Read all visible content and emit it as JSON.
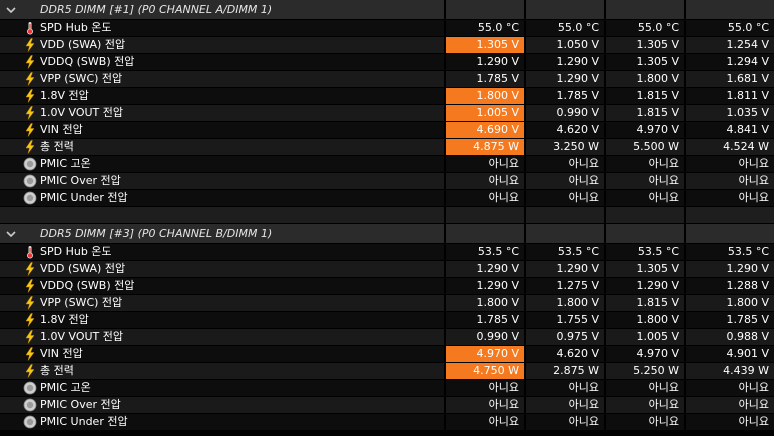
{
  "sections": [
    {
      "title": "DDR5 DIMM [#1] (P0 CHANNEL A/DIMM 1)",
      "rows": [
        {
          "icon": "thermometer-icon",
          "label": "SPD Hub 온도",
          "values": [
            "55.0 °C",
            "55.0 °C",
            "55.0 °C",
            "55.0 °C"
          ],
          "highlight": [
            false,
            false,
            false,
            false
          ]
        },
        {
          "icon": "lightning-icon",
          "label": "VDD (SWA) 전압",
          "values": [
            "1.305 V",
            "1.050 V",
            "1.305 V",
            "1.254 V"
          ],
          "highlight": [
            true,
            false,
            false,
            false
          ]
        },
        {
          "icon": "lightning-icon",
          "label": "VDDQ (SWB) 전압",
          "values": [
            "1.290 V",
            "1.290 V",
            "1.305 V",
            "1.294 V"
          ],
          "highlight": [
            false,
            false,
            false,
            false
          ]
        },
        {
          "icon": "lightning-icon",
          "label": "VPP (SWC) 전압",
          "values": [
            "1.785 V",
            "1.290 V",
            "1.800 V",
            "1.681 V"
          ],
          "highlight": [
            false,
            false,
            false,
            false
          ]
        },
        {
          "icon": "lightning-icon",
          "label": "1.8V 전압",
          "values": [
            "1.800 V",
            "1.785 V",
            "1.815 V",
            "1.811 V"
          ],
          "highlight": [
            true,
            false,
            false,
            false
          ]
        },
        {
          "icon": "lightning-icon",
          "label": "1.0V VOUT 전압",
          "values": [
            "1.005 V",
            "0.990 V",
            "1.815 V",
            "1.035 V"
          ],
          "highlight": [
            true,
            false,
            false,
            false
          ]
        },
        {
          "icon": "lightning-icon",
          "label": "VIN 전압",
          "values": [
            "4.690 V",
            "4.620 V",
            "4.970 V",
            "4.841 V"
          ],
          "highlight": [
            true,
            false,
            false,
            false
          ]
        },
        {
          "icon": "lightning-icon",
          "label": "총 전력",
          "values": [
            "4.875 W",
            "3.250 W",
            "5.500 W",
            "4.524 W"
          ],
          "highlight": [
            true,
            false,
            false,
            false
          ]
        },
        {
          "icon": "status-circle-icon",
          "label": "PMIC 고온",
          "values": [
            "아니요",
            "아니요",
            "아니요",
            "아니요"
          ],
          "highlight": [
            false,
            false,
            false,
            false
          ]
        },
        {
          "icon": "status-circle-icon",
          "label": "PMIC Over 전압",
          "values": [
            "아니요",
            "아니요",
            "아니요",
            "아니요"
          ],
          "highlight": [
            false,
            false,
            false,
            false
          ]
        },
        {
          "icon": "status-circle-icon",
          "label": "PMIC Under 전압",
          "values": [
            "아니요",
            "아니요",
            "아니요",
            "아니요"
          ],
          "highlight": [
            false,
            false,
            false,
            false
          ]
        }
      ]
    },
    {
      "title": "DDR5 DIMM [#3] (P0 CHANNEL B/DIMM 1)",
      "rows": [
        {
          "icon": "thermometer-icon",
          "label": "SPD Hub 온도",
          "values": [
            "53.5 °C",
            "53.5 °C",
            "53.5 °C",
            "53.5 °C"
          ],
          "highlight": [
            false,
            false,
            false,
            false
          ]
        },
        {
          "icon": "lightning-icon",
          "label": "VDD (SWA) 전압",
          "values": [
            "1.290 V",
            "1.290 V",
            "1.305 V",
            "1.290 V"
          ],
          "highlight": [
            false,
            false,
            false,
            false
          ]
        },
        {
          "icon": "lightning-icon",
          "label": "VDDQ (SWB) 전압",
          "values": [
            "1.290 V",
            "1.275 V",
            "1.290 V",
            "1.288 V"
          ],
          "highlight": [
            false,
            false,
            false,
            false
          ]
        },
        {
          "icon": "lightning-icon",
          "label": "VPP (SWC) 전압",
          "values": [
            "1.800 V",
            "1.800 V",
            "1.815 V",
            "1.800 V"
          ],
          "highlight": [
            false,
            false,
            false,
            false
          ]
        },
        {
          "icon": "lightning-icon",
          "label": "1.8V 전압",
          "values": [
            "1.785 V",
            "1.755 V",
            "1.800 V",
            "1.785 V"
          ],
          "highlight": [
            false,
            false,
            false,
            false
          ]
        },
        {
          "icon": "lightning-icon",
          "label": "1.0V VOUT 전압",
          "values": [
            "0.990 V",
            "0.975 V",
            "1.005 V",
            "0.988 V"
          ],
          "highlight": [
            false,
            false,
            false,
            false
          ]
        },
        {
          "icon": "lightning-icon",
          "label": "VIN 전압",
          "values": [
            "4.970 V",
            "4.620 V",
            "4.970 V",
            "4.901 V"
          ],
          "highlight": [
            true,
            false,
            false,
            false
          ]
        },
        {
          "icon": "lightning-icon",
          "label": "총 전력",
          "values": [
            "4.750 W",
            "2.875 W",
            "5.250 W",
            "4.439 W"
          ],
          "highlight": [
            true,
            false,
            false,
            false
          ]
        },
        {
          "icon": "status-circle-icon",
          "label": "PMIC 고온",
          "values": [
            "아니요",
            "아니요",
            "아니요",
            "아니요"
          ],
          "highlight": [
            false,
            false,
            false,
            false
          ]
        },
        {
          "icon": "status-circle-icon",
          "label": "PMIC Over 전압",
          "values": [
            "아니요",
            "아니요",
            "아니요",
            "아니요"
          ],
          "highlight": [
            false,
            false,
            false,
            false
          ]
        },
        {
          "icon": "status-circle-icon",
          "label": "PMIC Under 전압",
          "values": [
            "아니요",
            "아니요",
            "아니요",
            "아니요"
          ],
          "highlight": [
            false,
            false,
            false,
            false
          ]
        }
      ]
    }
  ],
  "colors": {
    "highlight": "#f57a1f",
    "background": "#000000",
    "header": "#2b2b2b"
  }
}
